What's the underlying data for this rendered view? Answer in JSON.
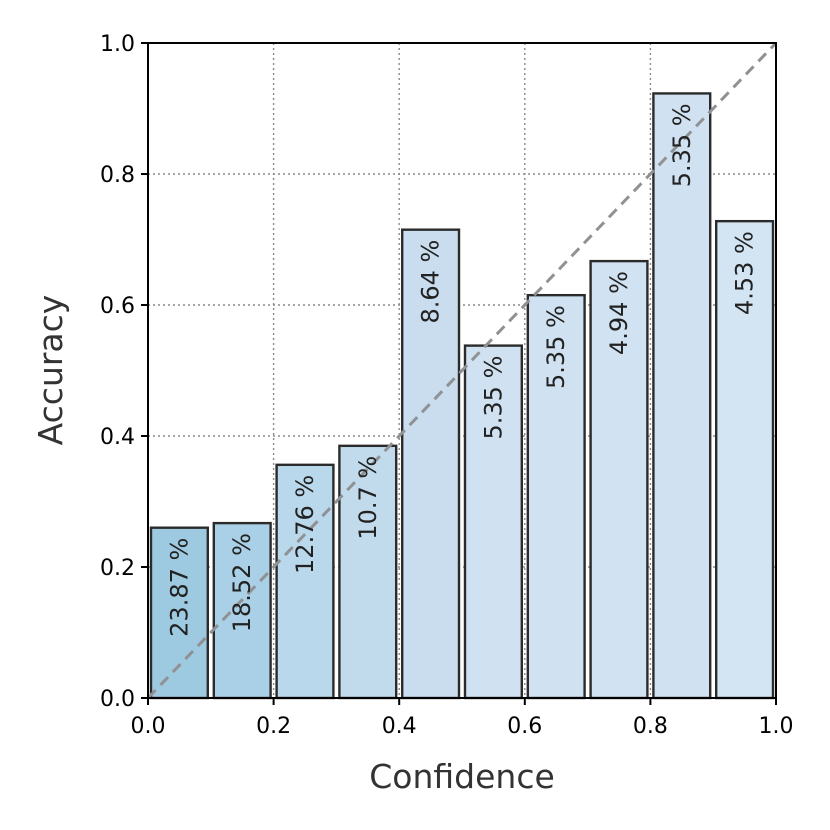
{
  "chart_data": {
    "type": "bar",
    "title": "",
    "xlabel": "Confidence",
    "ylabel": "Accuracy",
    "xlim": [
      0.0,
      1.0
    ],
    "ylim": [
      0.0,
      1.0
    ],
    "grid": true,
    "xticks": [
      "0.0",
      "0.2",
      "0.4",
      "0.6",
      "0.8",
      "1.0"
    ],
    "yticks": [
      "0.0",
      "0.2",
      "0.4",
      "0.6",
      "0.8",
      "1.0"
    ],
    "bins": [
      {
        "x0": 0.0,
        "x1": 0.1,
        "accuracy": 0.26,
        "label": "23.87 %"
      },
      {
        "x0": 0.1,
        "x1": 0.2,
        "accuracy": 0.267,
        "label": "18.52 %"
      },
      {
        "x0": 0.2,
        "x1": 0.3,
        "accuracy": 0.356,
        "label": "12.76 %"
      },
      {
        "x0": 0.3,
        "x1": 0.4,
        "accuracy": 0.385,
        "label": "10.7 %"
      },
      {
        "x0": 0.4,
        "x1": 0.5,
        "accuracy": 0.715,
        "label": "8.64 %"
      },
      {
        "x0": 0.5,
        "x1": 0.6,
        "accuracy": 0.538,
        "label": "5.35 %"
      },
      {
        "x0": 0.6,
        "x1": 0.7,
        "accuracy": 0.615,
        "label": "5.35 %"
      },
      {
        "x0": 0.7,
        "x1": 0.8,
        "accuracy": 0.667,
        "label": "4.94 %"
      },
      {
        "x0": 0.8,
        "x1": 0.9,
        "accuracy": 0.923,
        "label": "5.35 %"
      },
      {
        "x0": 0.9,
        "x1": 1.0,
        "accuracy": 0.728,
        "label": "4.53 %"
      }
    ],
    "bar_colors": [
      "#9ecae1",
      "#a9d0e6",
      "#bad8eb",
      "#c1dbed",
      "#c9ddef",
      "#d0e2f2",
      "#d0e2f2",
      "#d1e2f2",
      "#d0e2f2",
      "#d3e4f3"
    ],
    "reference_line": {
      "from": [
        0.0,
        0.0
      ],
      "to": [
        1.0,
        1.0
      ],
      "style": "dashed",
      "color": "#8f9193"
    }
  }
}
